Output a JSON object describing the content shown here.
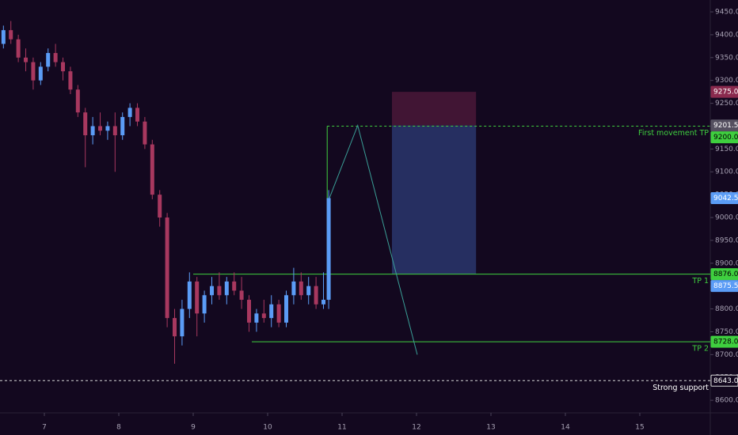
{
  "chart_data": {
    "type": "candlestick",
    "x": [
      6.45,
      6.55,
      6.65,
      6.75,
      6.85,
      6.95,
      7.05,
      7.15,
      7.25,
      7.35,
      7.45,
      7.55,
      7.65,
      7.75,
      7.85,
      7.95,
      8.05,
      8.15,
      8.25,
      8.35,
      8.45,
      8.55,
      8.65,
      8.75,
      8.85,
      8.95,
      9.05,
      9.15,
      9.25,
      9.35,
      9.45,
      9.55,
      9.65,
      9.75,
      9.85,
      9.95,
      10.05,
      10.15,
      10.25,
      10.35,
      10.45,
      10.55,
      10.65,
      10.75,
      10.82
    ],
    "open": [
      9380,
      9410,
      9390,
      9350,
      9340,
      9300,
      9330,
      9360,
      9340,
      9320,
      9280,
      9230,
      9180,
      9200,
      9190,
      9200,
      9180,
      9220,
      9240,
      9210,
      9160,
      9050,
      9000,
      8780,
      8740,
      8800,
      8860,
      8790,
      8830,
      8850,
      8830,
      8860,
      8840,
      8820,
      8770,
      8790,
      8780,
      8810,
      8770,
      8830,
      8860,
      8830,
      8850,
      8810,
      8820
    ],
    "high": [
      9420,
      9430,
      9400,
      9370,
      9350,
      9340,
      9370,
      9380,
      9350,
      9330,
      9290,
      9240,
      9220,
      9230,
      9210,
      9230,
      9230,
      9250,
      9250,
      9220,
      9170,
      9060,
      9010,
      8800,
      8820,
      8880,
      8870,
      8840,
      8870,
      8880,
      8870,
      8880,
      8870,
      8830,
      8800,
      8820,
      8830,
      8820,
      8840,
      8890,
      8880,
      8870,
      8870,
      8880,
      9060
    ],
    "low": [
      9370,
      9380,
      9340,
      9320,
      9280,
      9290,
      9320,
      9330,
      9300,
      9270,
      9220,
      9110,
      9160,
      9180,
      9170,
      9100,
      9170,
      9200,
      9200,
      9150,
      9040,
      8980,
      8760,
      8680,
      8720,
      8780,
      8740,
      8770,
      8810,
      8820,
      8810,
      8830,
      8800,
      8750,
      8750,
      8770,
      8760,
      8760,
      8760,
      8810,
      8820,
      8810,
      8800,
      8800,
      8800
    ],
    "close": [
      9410,
      9390,
      9350,
      9340,
      9300,
      9330,
      9360,
      9340,
      9320,
      9280,
      9230,
      9180,
      9200,
      9190,
      9200,
      9180,
      9220,
      9240,
      9210,
      9160,
      9050,
      9000,
      8780,
      8740,
      8800,
      8860,
      8790,
      8830,
      8850,
      8830,
      8860,
      8840,
      8820,
      8770,
      8790,
      8780,
      8810,
      8770,
      8830,
      8860,
      8830,
      8850,
      8810,
      8820,
      9042.5
    ],
    "up_color": "#5b9cf6",
    "down_color": "#a8385f",
    "xlim": [
      6.404,
      15.947
    ],
    "ylim": [
      8576,
      9476
    ],
    "xticks": [
      7,
      8,
      9,
      10,
      11,
      12,
      13,
      14,
      15
    ],
    "yticks": [
      {
        "value": 8600,
        "label": "8600.0"
      },
      {
        "value": 8650,
        "label": "8650.0"
      },
      {
        "value": 8700,
        "label": "8700.0"
      },
      {
        "value": 8750,
        "label": "8750.0"
      },
      {
        "value": 8800,
        "label": "8800.0"
      },
      {
        "value": 8850,
        "label": "8850.0"
      },
      {
        "value": 8900,
        "label": "8900.0"
      },
      {
        "value": 8950,
        "label": "8950.0"
      },
      {
        "value": 9000,
        "label": "9000.0"
      },
      {
        "value": 9050,
        "label": "9050.0"
      },
      {
        "value": 9100,
        "label": "9100.0"
      },
      {
        "value": 9150,
        "label": "9150.0"
      },
      {
        "value": 9200,
        "label": "9200.0"
      },
      {
        "value": 9250,
        "label": "9250.0"
      },
      {
        "value": 9300,
        "label": "9300.0"
      },
      {
        "value": 9350,
        "label": "9350.0"
      },
      {
        "value": 9400,
        "label": "9400.0"
      },
      {
        "value": 9450,
        "label": "9450.0"
      }
    ],
    "levels": [
      {
        "value": 9200,
        "label": "9200.0",
        "text": "First movement TP",
        "start": 10.8,
        "dashed": true,
        "color": "#3fcf3f"
      },
      {
        "value": 8876,
        "label": "8876.0",
        "text": "TP 1",
        "start": 9.0,
        "dashed": false,
        "color": "#3fcf3f"
      },
      {
        "value": 8728,
        "label": "8728.0",
        "text": "TP 2",
        "start": 9.787,
        "dashed": false,
        "color": "#3fcf3f"
      },
      {
        "value": 8643,
        "label": "8643.0",
        "text": "Strong support",
        "dashed": true,
        "color": "#d8d8d8"
      }
    ],
    "connector": {
      "x": 10.8,
      "y": [
        8876,
        9200
      ],
      "color": "#3fcf3f"
    },
    "position": {
      "x": [
        11.67,
        12.8
      ],
      "stop": 9275,
      "stop_label": "9275.0",
      "entry": 9201.5,
      "entry_label": "9201.5",
      "target": 8876
    },
    "price_labels": [
      {
        "value": 9042.5,
        "label": "9042.5",
        "color": "#5b9cf6"
      },
      {
        "value": 8875.5,
        "label": "8875.5",
        "color": "#5b9cf6"
      }
    ],
    "projection": {
      "x": [
        10.83,
        11.21,
        12.01
      ],
      "y": [
        9042.5,
        9201.5,
        8700
      ],
      "color": "#3a9e96"
    }
  }
}
